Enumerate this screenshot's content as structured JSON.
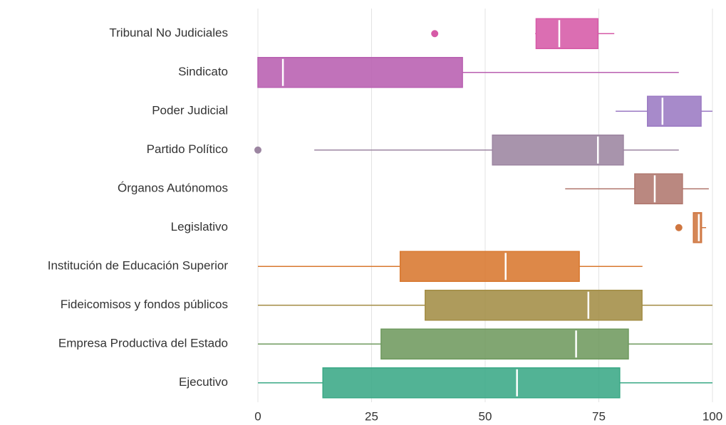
{
  "chart_data": {
    "type": "box",
    "orientation": "horizontal",
    "categories": [
      "Tribunal No Judiciales",
      "Sindicato",
      "Poder Judicial",
      "Partido Político",
      "Órganos Autónomos",
      "Legislativo",
      "Institución de Educación Superior",
      "Fideicomisos y fondos públicos",
      "Empresa Productiva del Estado",
      "Ejecutivo"
    ],
    "boxes": [
      {
        "color": "#d65aa7",
        "min": 61,
        "q1": 61.2,
        "median": 66.3,
        "q3": 74.8,
        "max": 78.4,
        "outliers": [
          38.9
        ]
      },
      {
        "color": "#b85fb0",
        "min": 0,
        "q1": 0,
        "median": 5.5,
        "q3": 45,
        "max": 92.6,
        "outliers": []
      },
      {
        "color": "#9b7ac3",
        "min": 78.7,
        "q1": 85.7,
        "median": 89,
        "q3": 97.5,
        "max": 100,
        "outliers": []
      },
      {
        "color": "#9c85a1",
        "min": 12.4,
        "q1": 51.6,
        "median": 74.8,
        "q3": 80.4,
        "max": 92.6,
        "outliers": [
          0
        ]
      },
      {
        "color": "#b0776e",
        "min": 67.6,
        "q1": 82.9,
        "median": 87.3,
        "q3": 93.4,
        "max": 99.2,
        "outliers": []
      },
      {
        "color": "#cf7640",
        "min": 95.8,
        "q1": 95.8,
        "median": 97,
        "q3": 97.6,
        "max": 98.6,
        "outliers": [
          92.6
        ]
      },
      {
        "color": "#d8782f",
        "min": 0,
        "q1": 31.3,
        "median": 54.5,
        "q3": 70.7,
        "max": 84.6,
        "outliers": []
      },
      {
        "color": "#a38d45",
        "min": 0,
        "q1": 36.8,
        "median": 72.7,
        "q3": 84.5,
        "max": 100,
        "outliers": []
      },
      {
        "color": "#6f9a5f",
        "min": 0,
        "q1": 27.1,
        "median": 70,
        "q3": 81.5,
        "max": 100,
        "outliers": []
      },
      {
        "color": "#3aa886",
        "min": 0,
        "q1": 14.3,
        "median": 57,
        "q3": 79.6,
        "max": 100,
        "outliers": []
      }
    ],
    "xlim": [
      0,
      100
    ],
    "xticks": [
      0,
      25,
      50,
      75,
      100
    ],
    "grid": true
  }
}
